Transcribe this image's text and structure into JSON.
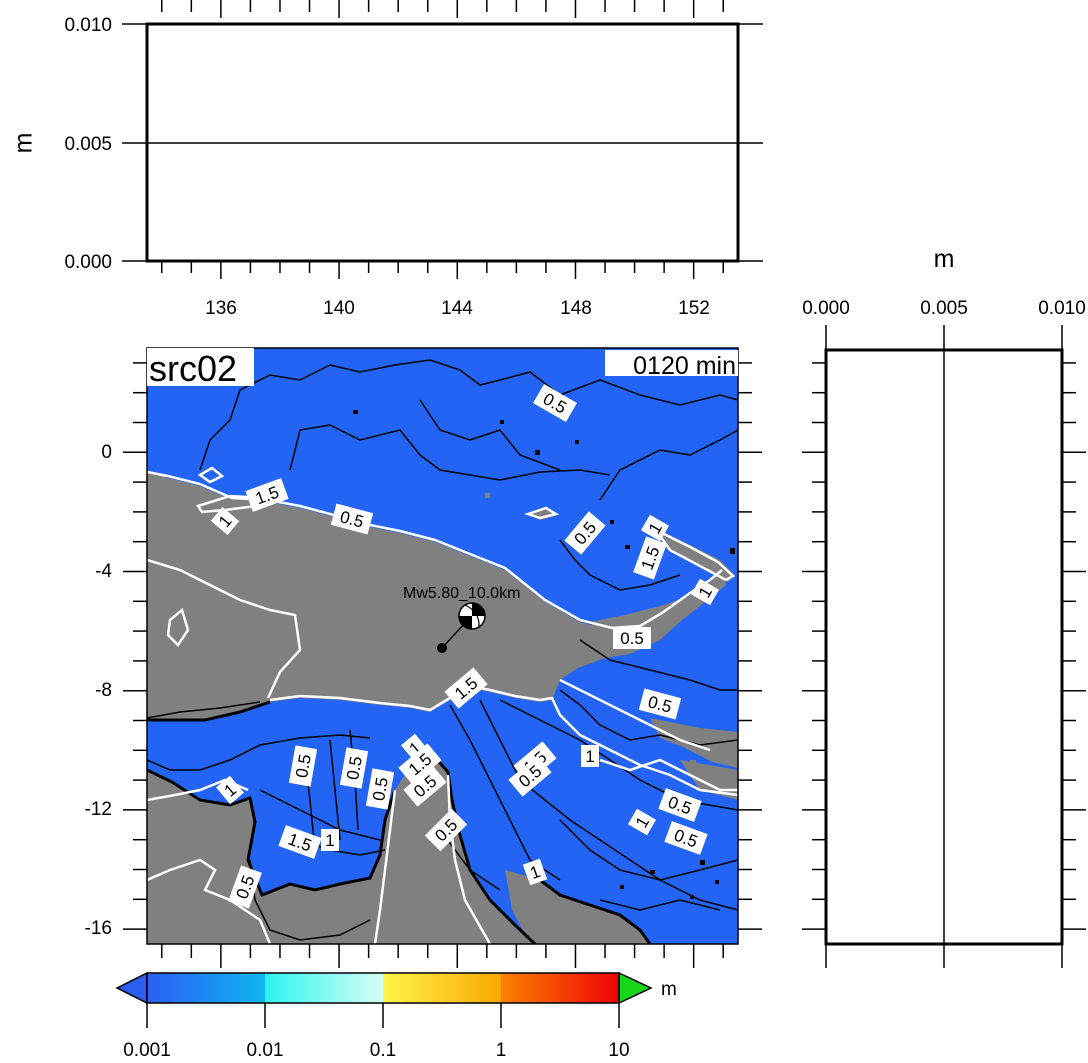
{
  "chart_data": [
    {
      "type": "line",
      "panel": "top profile",
      "ylabel": "m",
      "ylim": [
        0,
        0.01
      ],
      "yticks": [
        "0.000",
        "0.005",
        "0.010"
      ],
      "xlim": [
        133.5,
        153.5
      ],
      "xticks": [
        "136",
        "140",
        "144",
        "148",
        "152"
      ],
      "x": [
        133.5,
        153.5
      ],
      "y": [
        0.005,
        0.005
      ]
    },
    {
      "type": "heatmap",
      "panel": "map",
      "title_left": "src02",
      "title_right": "0120 min",
      "xlim": [
        133.5,
        153.5
      ],
      "ylim": [
        -16.5,
        3.5
      ],
      "yticks": [
        "0",
        "-4",
        "-8",
        "-12",
        "-16"
      ],
      "source": {
        "label": "Mw5.80_10.0km",
        "epicenter": [
          143.5,
          -6.6
        ],
        "mechanism": [
          144.5,
          -5.6
        ]
      },
      "contour_labels": [
        "0.5",
        "1.5",
        "1",
        "0.5",
        "0.5",
        "1.5",
        "1",
        "1",
        "0.5",
        "1.5",
        "0.5",
        "1",
        "1.5",
        "0.5",
        "1",
        "1.5",
        "0.5",
        "0.5",
        "0.5",
        "1.5",
        "1",
        "0.5",
        "0.5",
        "1",
        "0.5",
        "1",
        "0.5",
        "1",
        "0.5"
      ],
      "colors": {
        "ocean": "#2364f5",
        "land": "#808080"
      }
    },
    {
      "type": "line",
      "panel": "right profile",
      "xlabel": "m",
      "xlim": [
        0,
        0.01
      ],
      "xticks": [
        "0.000",
        "0.005",
        "0.010"
      ],
      "ylim": [
        -16.5,
        3.5
      ],
      "x": [
        0.005,
        0.005
      ],
      "y": [
        3.5,
        -16.5
      ]
    },
    {
      "type": "colorbar",
      "unit": "m",
      "scale": "log",
      "ticks": [
        "0.001",
        "0.01",
        "0.1",
        "1",
        "10"
      ],
      "colors": {
        "below": "#2d5cf0",
        "c1": "#1a8cf5",
        "c2": "#2ef0f0",
        "c3": "#fff24a",
        "c4": "#fc7a00",
        "above": "#18d618"
      }
    }
  ]
}
